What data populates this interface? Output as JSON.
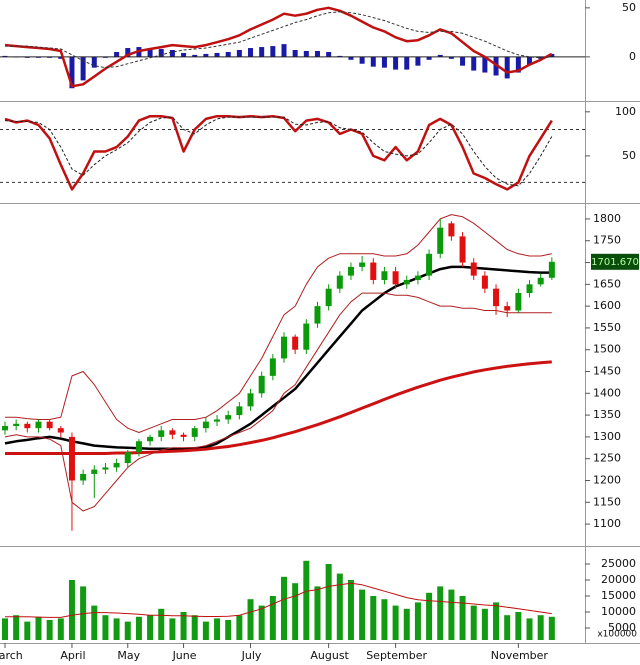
{
  "chart_data": [
    {
      "type": "macd",
      "ylim": [
        -44,
        58
      ],
      "yticks": [
        0,
        50
      ],
      "histogram": {
        "color": "#1a1aa8",
        "values": [
          1,
          0,
          -1,
          -1,
          -1,
          -2,
          -32,
          -24,
          -11,
          -1,
          5,
          9,
          10,
          9,
          8,
          7,
          4,
          2,
          3,
          4,
          5,
          7,
          9,
          10,
          11,
          13,
          7,
          6,
          6,
          5,
          1,
          -3,
          -7,
          -10,
          -11,
          -13,
          -13,
          -9,
          -3,
          2,
          -2,
          -9,
          -14,
          -16,
          -19,
          -22,
          -16,
          -8,
          -2,
          3
        ]
      },
      "series": [
        {
          "color": "#c01010",
          "line_width": 2.5,
          "dashed": false,
          "values": [
            12,
            11,
            10,
            9,
            8,
            6,
            -30,
            -28,
            -20,
            -12,
            -5,
            2,
            6,
            8,
            10,
            12,
            11,
            10,
            12,
            15,
            18,
            22,
            28,
            33,
            38,
            44,
            42,
            44,
            48,
            50,
            47,
            42,
            36,
            30,
            26,
            20,
            16,
            17,
            22,
            28,
            24,
            15,
            6,
            0,
            -8,
            -16,
            -14,
            -8,
            -3,
            3
          ]
        },
        {
          "color": "#333333",
          "line_width": 1,
          "dashed": true,
          "values": [
            11,
            11,
            11,
            10,
            9,
            8,
            2,
            -4,
            -9,
            -11,
            -10,
            -7,
            -4,
            -1,
            2,
            5,
            7,
            8,
            9,
            11,
            13,
            15,
            19,
            23,
            27,
            31,
            35,
            38,
            42,
            45,
            46,
            45,
            43,
            40,
            37,
            33,
            29,
            26,
            25,
            26,
            26,
            24,
            20,
            16,
            11,
            6,
            2,
            0,
            -1,
            0
          ]
        }
      ]
    },
    {
      "type": "line",
      "ylim": [
        0,
        110
      ],
      "yticks": [
        50,
        100
      ],
      "levels": [
        20,
        80
      ],
      "series": [
        {
          "color": "#c01010",
          "line_width": 2.5,
          "dashed": false,
          "values": [
            92,
            88,
            90,
            85,
            70,
            40,
            12,
            30,
            55,
            55,
            60,
            72,
            90,
            95,
            95,
            93,
            55,
            80,
            92,
            95,
            95,
            94,
            95,
            94,
            95,
            93,
            78,
            90,
            92,
            88,
            75,
            80,
            75,
            50,
            45,
            60,
            45,
            55,
            85,
            92,
            85,
            60,
            30,
            25,
            18,
            12,
            20,
            50,
            70,
            90
          ]
        },
        {
          "color": "#222222",
          "line_width": 1,
          "dashed": true,
          "values": [
            90,
            89,
            89,
            88,
            80,
            60,
            35,
            28,
            40,
            50,
            57,
            65,
            78,
            88,
            93,
            94,
            80,
            75,
            85,
            92,
            94,
            94,
            94,
            94,
            94,
            94,
            86,
            85,
            88,
            89,
            82,
            80,
            77,
            65,
            55,
            52,
            50,
            52,
            65,
            80,
            86,
            75,
            55,
            38,
            25,
            18,
            16,
            30,
            50,
            72
          ]
        }
      ]
    },
    {
      "type": "candlestick",
      "ylim": [
        1052,
        1832
      ],
      "yticks": [
        1100,
        1150,
        1200,
        1250,
        1300,
        1350,
        1400,
        1450,
        1500,
        1550,
        1600,
        1650,
        1700,
        1750,
        1800
      ],
      "up_color": "#0a9a0a",
      "down_color": "#e01010",
      "open": [
        1315,
        1325,
        1330,
        1320,
        1335,
        1320,
        1300,
        1200,
        1215,
        1225,
        1230,
        1240,
        1265,
        1290,
        1300,
        1315,
        1305,
        1300,
        1320,
        1335,
        1340,
        1350,
        1370,
        1400,
        1440,
        1480,
        1530,
        1500,
        1560,
        1600,
        1640,
        1670,
        1690,
        1700,
        1660,
        1680,
        1650,
        1660,
        1670,
        1720,
        1790,
        1760,
        1700,
        1670,
        1640,
        1600,
        1590,
        1630,
        1650,
        1665
      ],
      "high": [
        1335,
        1340,
        1335,
        1340,
        1340,
        1325,
        1310,
        1225,
        1235,
        1240,
        1250,
        1270,
        1295,
        1305,
        1325,
        1320,
        1310,
        1325,
        1345,
        1350,
        1360,
        1380,
        1410,
        1450,
        1490,
        1540,
        1535,
        1570,
        1610,
        1650,
        1680,
        1700,
        1715,
        1710,
        1690,
        1690,
        1670,
        1680,
        1730,
        1800,
        1795,
        1770,
        1710,
        1680,
        1650,
        1610,
        1640,
        1660,
        1675,
        1712
      ],
      "low": [
        1305,
        1315,
        1310,
        1310,
        1315,
        1300,
        1085,
        1190,
        1160,
        1215,
        1220,
        1230,
        1255,
        1280,
        1290,
        1295,
        1290,
        1290,
        1310,
        1325,
        1330,
        1340,
        1360,
        1390,
        1430,
        1470,
        1490,
        1490,
        1550,
        1590,
        1630,
        1660,
        1680,
        1650,
        1650,
        1640,
        1640,
        1650,
        1660,
        1710,
        1750,
        1690,
        1660,
        1630,
        1580,
        1575,
        1585,
        1620,
        1645,
        1660
      ],
      "close": [
        1325,
        1330,
        1320,
        1335,
        1320,
        1310,
        1200,
        1215,
        1225,
        1230,
        1240,
        1265,
        1290,
        1300,
        1315,
        1305,
        1300,
        1320,
        1335,
        1340,
        1350,
        1370,
        1400,
        1440,
        1480,
        1530,
        1500,
        1560,
        1600,
        1640,
        1670,
        1690,
        1700,
        1660,
        1680,
        1650,
        1660,
        1670,
        1720,
        1780,
        1760,
        1700,
        1670,
        1640,
        1600,
        1590,
        1630,
        1650,
        1665,
        1701.67
      ],
      "last_price": {
        "value": 1701.67,
        "label": "1701.670"
      },
      "series": [
        {
          "color": "#000000",
          "line_width": 2.5,
          "dashed": false,
          "values": [
            1285,
            1290,
            1293,
            1297,
            1300,
            1296,
            1290,
            1285,
            1280,
            1278,
            1276,
            1275,
            1274,
            1273,
            1273,
            1273,
            1273,
            1274,
            1276,
            1285,
            1300,
            1315,
            1330,
            1350,
            1370,
            1390,
            1410,
            1440,
            1470,
            1500,
            1530,
            1560,
            1590,
            1610,
            1630,
            1645,
            1655,
            1665,
            1675,
            1685,
            1690,
            1690,
            1688,
            1686,
            1684,
            1682,
            1680,
            1678,
            1677,
            1677
          ]
        },
        {
          "color": "#cc1111",
          "line_width": 3,
          "dashed": false,
          "values": [
            1262,
            1262,
            1262,
            1262,
            1262,
            1262,
            1262,
            1262,
            1262,
            1262,
            1263,
            1263,
            1264,
            1265,
            1266,
            1267,
            1268,
            1270,
            1272,
            1275,
            1278,
            1282,
            1287,
            1292,
            1298,
            1305,
            1312,
            1320,
            1328,
            1337,
            1346,
            1356,
            1366,
            1376,
            1386,
            1396,
            1405,
            1414,
            1422,
            1430,
            1437,
            1443,
            1449,
            1454,
            1458,
            1462,
            1465,
            1468,
            1470,
            1472
          ]
        },
        {
          "color": "#b02020",
          "line_width": 1,
          "dashed": false,
          "values": [
            1345,
            1345,
            1342,
            1340,
            1340,
            1345,
            1440,
            1450,
            1420,
            1380,
            1340,
            1320,
            1310,
            1320,
            1330,
            1340,
            1340,
            1340,
            1345,
            1360,
            1380,
            1400,
            1440,
            1480,
            1530,
            1580,
            1600,
            1650,
            1690,
            1710,
            1720,
            1720,
            1720,
            1720,
            1715,
            1715,
            1720,
            1740,
            1770,
            1800,
            1810,
            1805,
            1790,
            1770,
            1750,
            1730,
            1720,
            1715,
            1715,
            1720
          ]
        },
        {
          "color": "#b02020",
          "line_width": 1,
          "dashed": false,
          "values": [
            1300,
            1305,
            1300,
            1300,
            1295,
            1280,
            1150,
            1130,
            1140,
            1170,
            1200,
            1230,
            1250,
            1260,
            1270,
            1275,
            1275,
            1275,
            1280,
            1290,
            1300,
            1310,
            1320,
            1340,
            1360,
            1400,
            1420,
            1460,
            1500,
            1540,
            1580,
            1610,
            1630,
            1630,
            1630,
            1625,
            1625,
            1620,
            1610,
            1600,
            1600,
            1595,
            1595,
            1590,
            1590,
            1585,
            1585,
            1585,
            1585,
            1585
          ]
        }
      ]
    },
    {
      "type": "bar",
      "ylim": [
        1250,
        30000
      ],
      "yticks": [
        5000,
        10000,
        15000,
        20000,
        25000
      ],
      "y_unit_label": "x100000",
      "color": "#139a13",
      "categories": [
        "March",
        null,
        null,
        null,
        null,
        null,
        "April",
        null,
        null,
        null,
        null,
        "May",
        null,
        null,
        null,
        null,
        "June",
        null,
        null,
        null,
        null,
        null,
        "July",
        null,
        null,
        null,
        null,
        null,
        null,
        "August",
        null,
        null,
        null,
        null,
        null,
        "September",
        null,
        null,
        null,
        null,
        null,
        null,
        null,
        null,
        null,
        null,
        "November",
        null,
        null,
        null
      ],
      "values": [
        8000,
        9000,
        7000,
        8500,
        7500,
        8000,
        20000,
        18000,
        12000,
        9000,
        8000,
        7000,
        8500,
        9000,
        11000,
        8000,
        10000,
        9000,
        7000,
        8000,
        7500,
        9000,
        14000,
        12000,
        15000,
        21000,
        19000,
        26000,
        18000,
        25000,
        22000,
        20000,
        17000,
        15000,
        14000,
        12000,
        11000,
        13000,
        16000,
        18000,
        17000,
        15000,
        12000,
        11000,
        13000,
        9000,
        10000,
        8000,
        9000,
        8500
      ],
      "series": [
        {
          "color": "#c01010",
          "line_width": 1,
          "dashed": false,
          "values": [
            8500,
            8500,
            8500,
            8400,
            8300,
            8300,
            9000,
            9500,
            9800,
            9800,
            9700,
            9500,
            9300,
            9000,
            9000,
            8800,
            8800,
            8700,
            8600,
            8600,
            8700,
            9000,
            10000,
            11000,
            12500,
            14000,
            15000,
            16500,
            17000,
            18000,
            18500,
            19000,
            18500,
            17500,
            16500,
            15500,
            14500,
            13800,
            13500,
            13300,
            13000,
            12800,
            12500,
            12200,
            12000,
            11500,
            11000,
            10500,
            10000,
            9500
          ]
        }
      ]
    }
  ]
}
